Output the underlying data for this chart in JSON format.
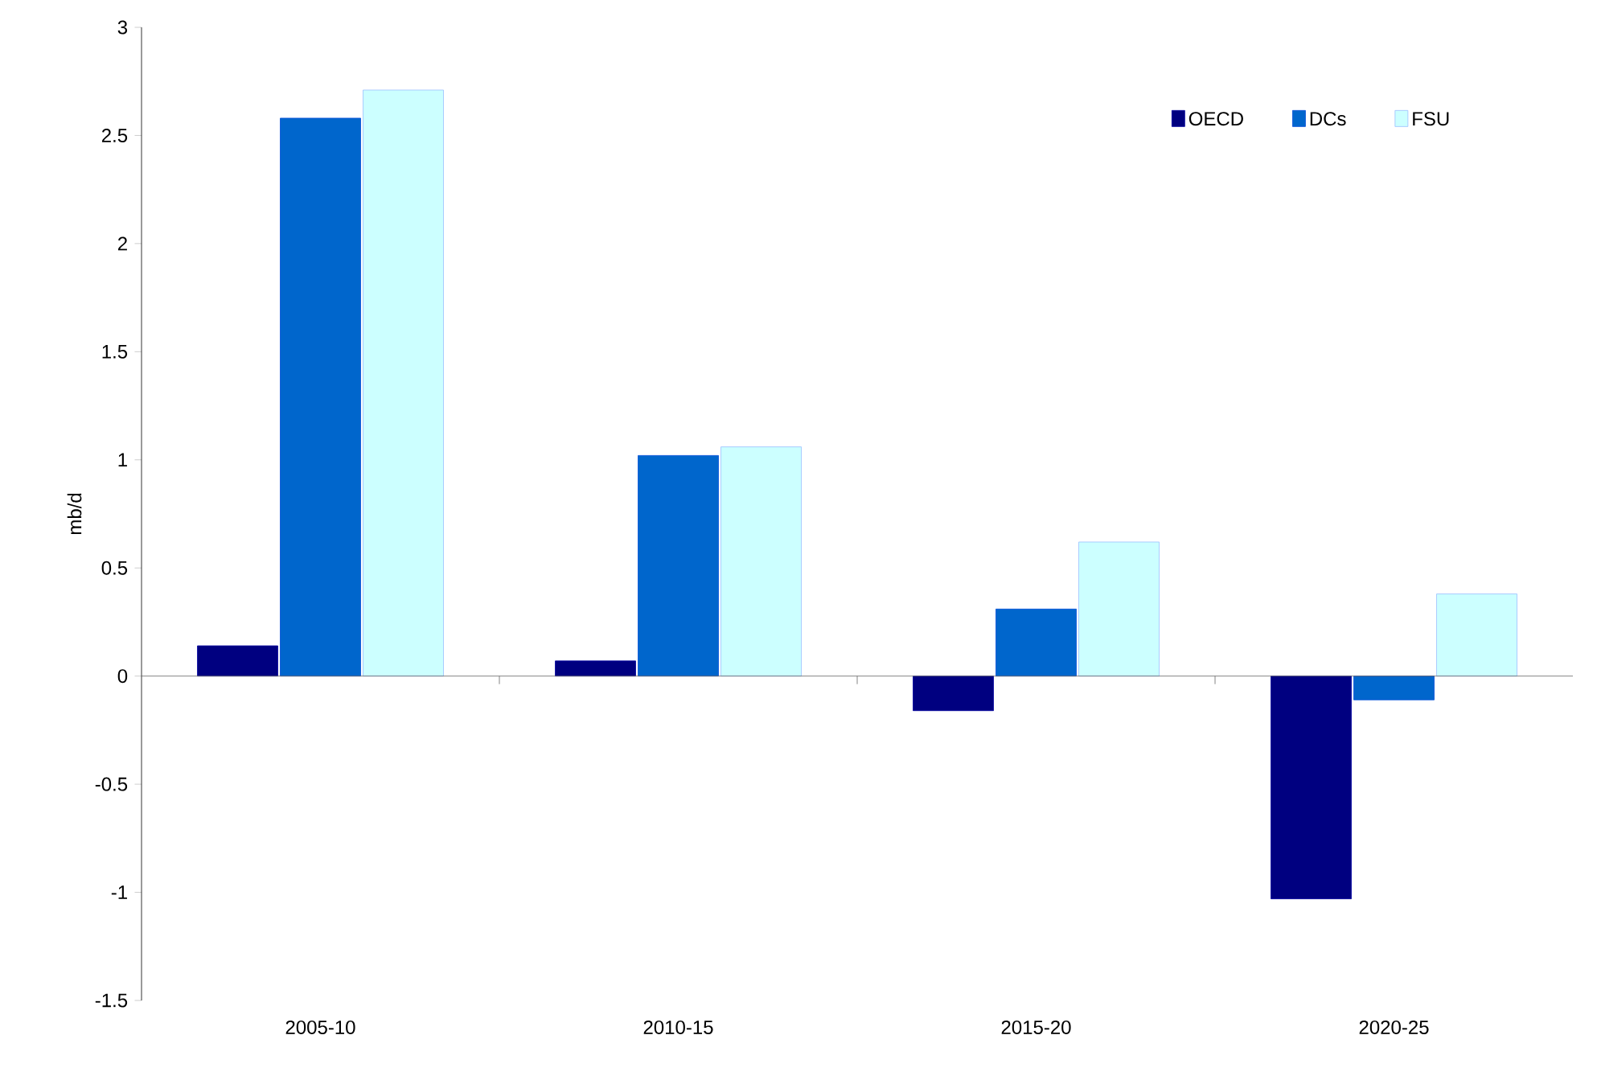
{
  "chart_data": {
    "type": "bar",
    "ylabel": "mb/d",
    "categories": [
      "2005-10",
      "2010-15",
      "2015-20",
      "2020-25"
    ],
    "series": [
      {
        "name": "OECD",
        "color": "#000080",
        "values": [
          0.14,
          0.07,
          -0.16,
          -1.03
        ]
      },
      {
        "name": "DCs",
        "color": "#0066cc",
        "values": [
          2.58,
          1.02,
          0.31,
          -0.11
        ]
      },
      {
        "name": "FSU",
        "color": "#ccffff",
        "values": [
          2.71,
          1.06,
          0.62,
          0.38
        ]
      }
    ],
    "ylim": [
      -1.5,
      3
    ],
    "yticks": [
      -1.5,
      -1,
      -0.5,
      0,
      0.5,
      1,
      1.5,
      2,
      2.5,
      3
    ],
    "legend": "top right"
  }
}
